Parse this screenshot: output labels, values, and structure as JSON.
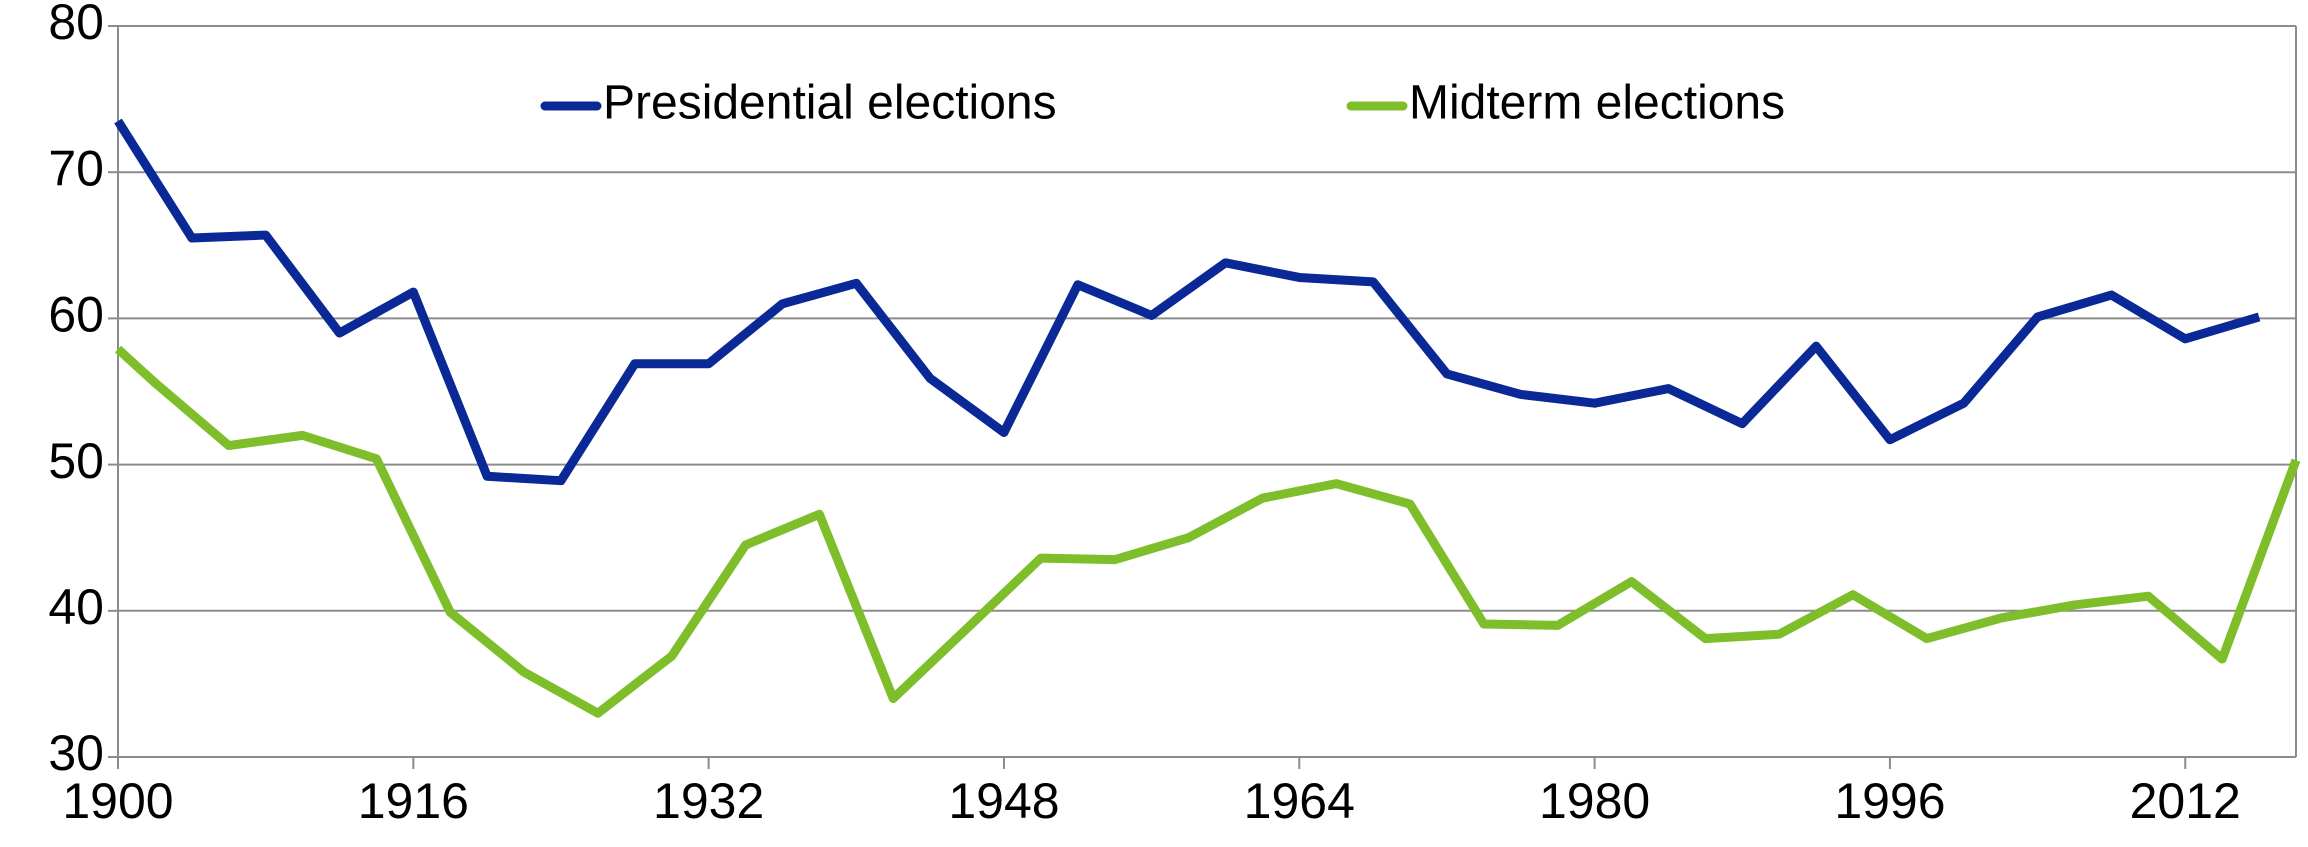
{
  "chart_data": {
    "type": "line",
    "xlim": [
      1900,
      2018
    ],
    "xticks": [
      1900,
      1916,
      1932,
      1948,
      1964,
      1980,
      1996,
      2012
    ],
    "ylim": [
      30,
      80
    ],
    "yticks": [
      30,
      40,
      50,
      60,
      70,
      80
    ],
    "grid": true,
    "series": [
      {
        "name": "Presidential elections",
        "color": "#0a2896",
        "x": [
          1900,
          1904,
          1908,
          1912,
          1916,
          1920,
          1924,
          1928,
          1932,
          1936,
          1940,
          1944,
          1948,
          1952,
          1956,
          1960,
          1964,
          1968,
          1972,
          1976,
          1980,
          1984,
          1988,
          1992,
          1996,
          2000,
          2004,
          2008,
          2012,
          2016
        ],
        "values": [
          73.5,
          65.5,
          65.7,
          59.0,
          61.8,
          49.2,
          48.9,
          56.9,
          56.9,
          61.0,
          62.4,
          55.9,
          52.2,
          62.3,
          60.2,
          63.8,
          62.8,
          62.5,
          56.2,
          54.8,
          54.2,
          55.2,
          52.8,
          58.1,
          51.7,
          54.2,
          60.1,
          61.6,
          58.6,
          60.1
        ]
      },
      {
        "name": "Midterm elections",
        "color": "#7dbe2a",
        "x": [
          1900,
          1902,
          1906,
          1910,
          1914,
          1918,
          1922,
          1926,
          1930,
          1934,
          1938,
          1942,
          1946,
          1950,
          1954,
          1958,
          1962,
          1966,
          1970,
          1974,
          1978,
          1982,
          1986,
          1990,
          1994,
          1998,
          2002,
          2006,
          2010,
          2014,
          2018
        ],
        "values": [
          57.9,
          55.6,
          51.3,
          52.0,
          50.4,
          39.9,
          35.8,
          33.0,
          36.9,
          44.5,
          46.6,
          34.0,
          38.8,
          43.6,
          43.5,
          45.0,
          47.7,
          48.7,
          47.3,
          39.1,
          39.0,
          42.0,
          38.1,
          38.4,
          41.1,
          38.1,
          39.5,
          40.4,
          41.0,
          36.7,
          50.3
        ]
      }
    ]
  }
}
